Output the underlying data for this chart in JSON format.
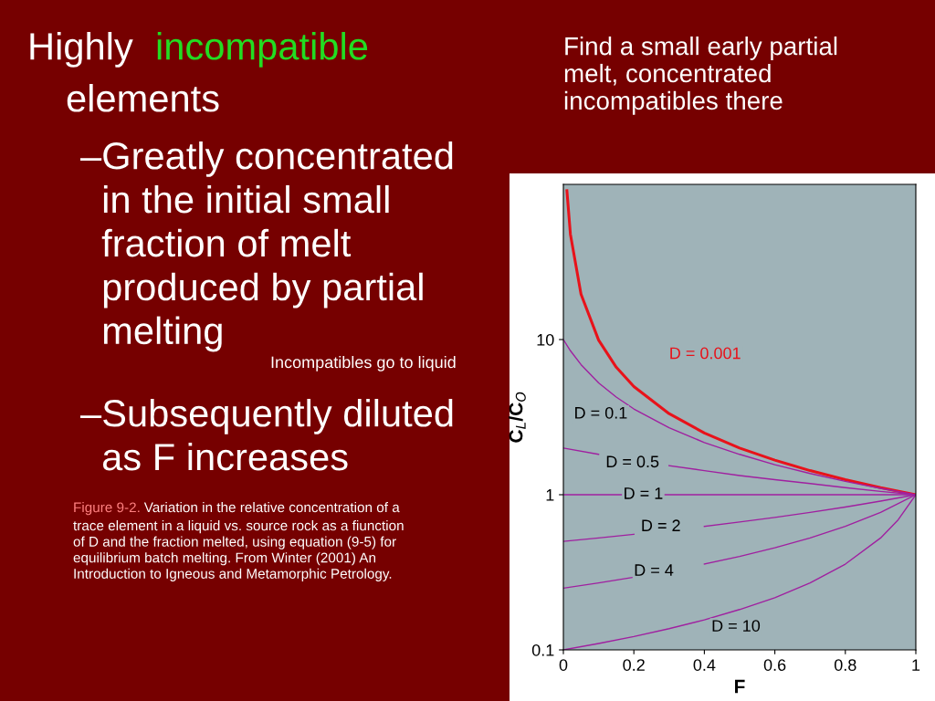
{
  "chart_data": {
    "type": "line",
    "xlabel": "F",
    "ylabel": "C$_{L}$/C$_{O}$",
    "xlim": [
      0,
      1
    ],
    "xticks": [
      0,
      0.2,
      0.4,
      0.6,
      0.8,
      1
    ],
    "ylim": [
      0.1,
      100
    ],
    "yticks": [
      0.1,
      1,
      10
    ],
    "log": true,
    "grid": false,
    "legend": false,
    "marker": "none",
    "line_style": "solid",
    "series": [
      {
        "name": "D = 0.001",
        "color": "#e8121a",
        "x": [
          0.01,
          0.02,
          0.05,
          0.1,
          0.15,
          0.2,
          0.3,
          0.4,
          0.5,
          0.6,
          0.7,
          0.8,
          0.9,
          1
        ],
        "values": [
          91,
          47.7,
          19.6,
          9.91,
          6.63,
          4.98,
          3.33,
          2.5,
          2.0,
          1.67,
          1.43,
          1.25,
          1.11,
          1
        ]
      },
      {
        "name": "D = 0.1",
        "color": "#a020a0",
        "x": [
          0,
          0.02,
          0.05,
          0.1,
          0.15,
          0.2,
          0.3,
          0.4,
          0.5,
          0.6,
          0.7,
          0.8,
          0.9,
          1
        ],
        "values": [
          10,
          8.47,
          6.9,
          5.26,
          4.26,
          3.57,
          2.7,
          2.17,
          1.82,
          1.56,
          1.37,
          1.22,
          1.1,
          1
        ]
      },
      {
        "name": "D = 0.5",
        "color": "#a020a0",
        "x": [
          0,
          0.1,
          0.2,
          0.3,
          0.4,
          0.5,
          0.6,
          0.7,
          0.8,
          0.9,
          1
        ],
        "values": [
          2,
          1.82,
          null,
          1.54,
          1.43,
          1.33,
          1.25,
          1.18,
          1.11,
          1.05,
          1
        ]
      },
      {
        "name": "D = 1",
        "color": "#a020a0",
        "x": [
          0,
          1
        ],
        "values": [
          1,
          1
        ]
      },
      {
        "name": "D = 2",
        "color": "#a020a0",
        "x": [
          0,
          0.1,
          0.2,
          0.3,
          0.4,
          0.5,
          0.6,
          0.7,
          0.8,
          0.9,
          1
        ],
        "values": [
          0.5,
          0.526,
          0.556,
          null,
          0.625,
          0.667,
          0.714,
          0.769,
          0.833,
          0.909,
          1
        ]
      },
      {
        "name": "D = 4",
        "color": "#a020a0",
        "x": [
          0,
          0.1,
          0.2,
          0.3,
          0.4,
          0.5,
          0.6,
          0.7,
          0.8,
          0.9,
          1
        ],
        "values": [
          0.25,
          0.27,
          0.294,
          null,
          0.357,
          0.4,
          0.455,
          0.526,
          0.625,
          0.769,
          1
        ]
      },
      {
        "name": "D = 10",
        "color": "#a020a0",
        "x": [
          0,
          0.1,
          0.2,
          0.3,
          0.4,
          0.5,
          0.6,
          0.7,
          0.8,
          0.9,
          0.95,
          1
        ],
        "values": [
          0.1,
          0.11,
          0.122,
          0.137,
          0.156,
          0.182,
          0.217,
          0.27,
          0.357,
          0.526,
          0.69,
          1
        ]
      }
    ],
    "annotations": [
      "Highly",
      "incompatible",
      "elements",
      "–Greatly concentrated\n  in the initial small\n  fraction of melt\n  produced by partial\n  melting",
      "Incompatibles go to liquid",
      "–Subsequently diluted\n  as F increases",
      "Figure 9-2.",
      "Variation in the relative concentration of a",
      "trace element in a liquid vs. source rock as a fiunction\nof D and the fraction melted, using equation (9-5) for\nequilibrium batch melting. From Winter (2001) An\nIntroduction to Igneous and Metamorphic Petrology.",
      "Find a small early partial\nmelt, concentrated\nincompatibles there"
    ]
  }
}
